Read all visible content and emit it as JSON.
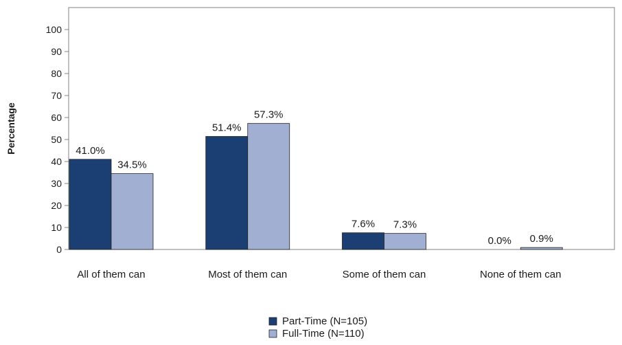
{
  "chart_data": {
    "type": "bar",
    "title": "",
    "xlabel": "",
    "ylabel": "Percentage",
    "ylim": [
      0,
      100
    ],
    "yticks": [
      0,
      10,
      20,
      30,
      40,
      50,
      60,
      70,
      80,
      90,
      100
    ],
    "grid": false,
    "legend_position": "bottom-center",
    "categories": [
      "All of them can",
      "Most of them can",
      "Some of them can",
      "None of them can"
    ],
    "series": [
      {
        "name": "Part-Time (N=105)",
        "color": "#1b3f73",
        "values": [
          41.0,
          51.4,
          7.6,
          0.0
        ],
        "labels": [
          "41.0%",
          "51.4%",
          "7.6%",
          "0.0%"
        ]
      },
      {
        "name": "Full-Time (N=110)",
        "color": "#a1afd2",
        "values": [
          34.5,
          57.3,
          7.3,
          0.9
        ],
        "labels": [
          "34.5%",
          "57.3%",
          "7.3%",
          "0.9%"
        ]
      }
    ]
  }
}
